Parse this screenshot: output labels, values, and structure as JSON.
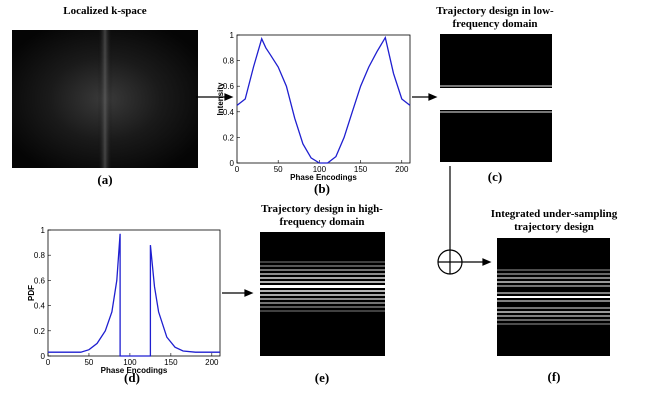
{
  "chart_data": [
    {
      "type": "line",
      "xlabel": "Phase Encodings",
      "ylabel": "Intensity",
      "color": "#1f1fd0",
      "x": [
        0,
        10,
        20,
        30,
        35,
        40,
        50,
        60,
        70,
        80,
        90,
        100,
        110,
        120,
        130,
        140,
        150,
        160,
        170,
        180,
        190,
        200,
        210
      ],
      "values": [
        0.45,
        0.5,
        0.75,
        0.97,
        0.9,
        0.85,
        0.75,
        0.6,
        0.35,
        0.15,
        0.04,
        0,
        0,
        0.05,
        0.2,
        0.4,
        0.6,
        0.75,
        0.87,
        0.98,
        0.7,
        0.5,
        0.45
      ],
      "xlim": [
        0,
        210
      ],
      "xticks": [
        0,
        50,
        100,
        150,
        200
      ],
      "ylim": [
        0,
        1
      ],
      "yticks": [
        0,
        0.2,
        0.4,
        0.6,
        0.8,
        1
      ]
    },
    {
      "type": "line",
      "xlabel": "Phase Encodings",
      "ylabel": "PDF",
      "color": "#1f1fd0",
      "x": [
        0,
        40,
        50,
        60,
        70,
        78,
        84,
        88,
        88,
        125,
        125,
        130,
        135,
        145,
        155,
        165,
        180,
        210
      ],
      "values": [
        0.03,
        0.03,
        0.05,
        0.1,
        0.2,
        0.35,
        0.6,
        0.97,
        0,
        0,
        0.88,
        0.55,
        0.35,
        0.15,
        0.07,
        0.04,
        0.03,
        0.03
      ],
      "xlim": [
        0,
        210
      ],
      "xticks": [
        0,
        50,
        100,
        150,
        200
      ],
      "ylim": [
        0,
        1
      ],
      "yticks": [
        0,
        0.2,
        0.4,
        0.6,
        0.8,
        1
      ]
    }
  ],
  "panels": {
    "a": {
      "title": "Localized k-space",
      "label": "(a)"
    },
    "b": {
      "label": "(b)"
    },
    "c": {
      "title": [
        "Trajectory design in low-",
        "frequency domain"
      ],
      "label": "(c)"
    },
    "d": {
      "label": "(d)"
    },
    "e": {
      "title": [
        "Trajectory design in high-",
        "frequency domain"
      ],
      "label": "(e)"
    },
    "f": {
      "title": [
        "Integrated under-sampling",
        "trajectory design"
      ],
      "label": "(f)"
    }
  }
}
